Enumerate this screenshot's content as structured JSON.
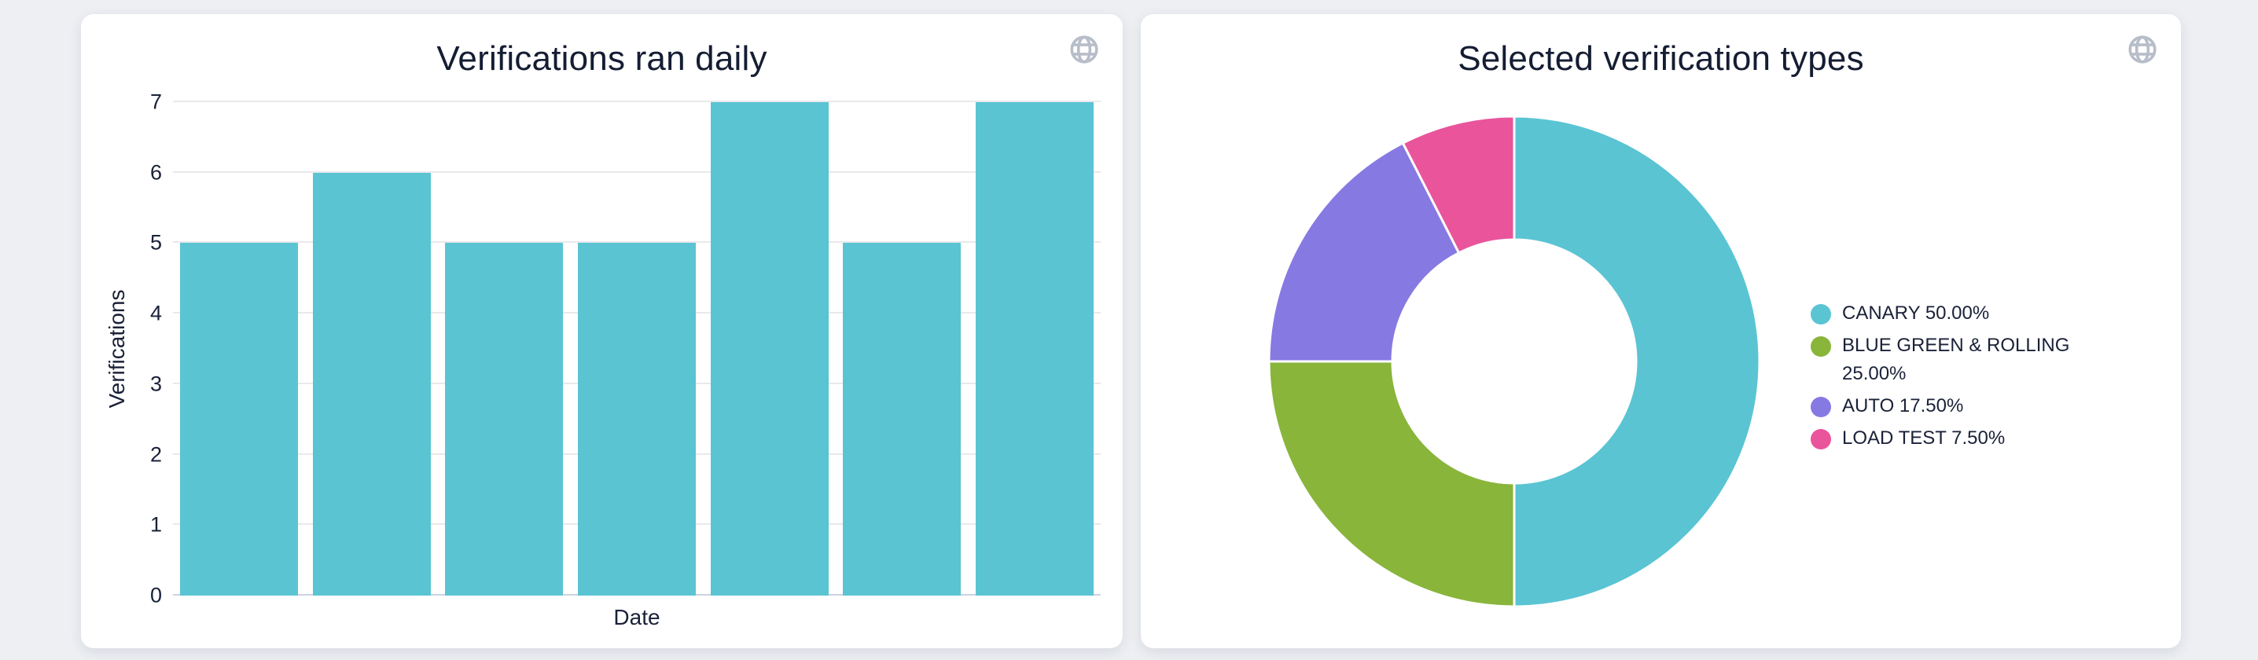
{
  "page": {
    "background_color": "#edeff3",
    "card_background": "#ffffff",
    "text_color": "#1a2138",
    "title_color": "#151d33"
  },
  "icons": {
    "card_action": "globe-icon",
    "color": "#b7bdc9"
  },
  "chart_data": [
    {
      "type": "bar",
      "title": "Verifications ran daily",
      "xlabel": "Date",
      "ylabel": "Verifications",
      "ylim": [
        0,
        7
      ],
      "yticks": [
        0,
        1,
        2,
        3,
        4,
        5,
        6,
        7
      ],
      "categories": [
        "",
        "",
        "",
        "",
        "",
        "",
        ""
      ],
      "values": [
        5,
        6,
        5,
        5,
        7,
        5,
        7
      ],
      "bar_color": "#5ac4d3",
      "grid": true,
      "x_tick_labels_visible": false,
      "legend_position": "none"
    },
    {
      "type": "pie",
      "title": "Selected verification types",
      "donut": true,
      "legend_position": "right",
      "slices": [
        {
          "label": "CANARY",
          "value": 50.0,
          "legend": "CANARY 50.00%",
          "color": "#5ac4d3"
        },
        {
          "label": "BLUE GREEN & ROLLING",
          "value": 25.0,
          "legend": "BLUE GREEN & ROLLING 25.00%",
          "color": "#89b53b"
        },
        {
          "label": "AUTO",
          "value": 17.5,
          "legend": "AUTO 17.50%",
          "color": "#8779e2"
        },
        {
          "label": "LOAD TEST",
          "value": 7.5,
          "legend": "LOAD TEST 7.50%",
          "color": "#e9549b"
        }
      ]
    }
  ]
}
